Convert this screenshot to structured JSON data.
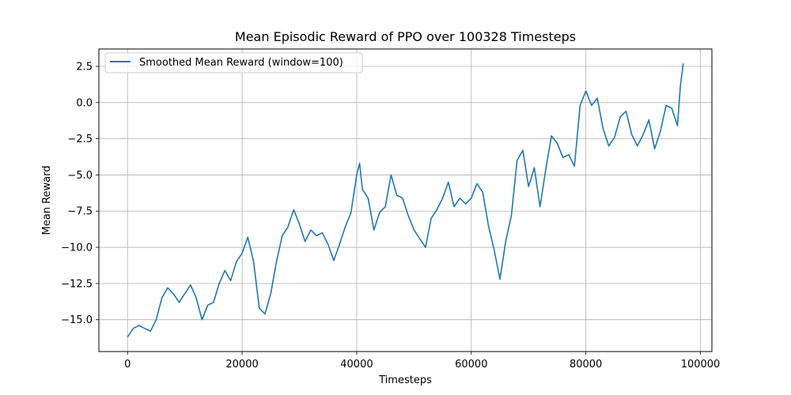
{
  "chart_data": {
    "type": "line",
    "title": "Mean Episodic Reward of PPO over 100328 Timesteps",
    "xlabel": "Timesteps",
    "ylabel": "Mean Reward",
    "xlim": [
      -5000,
      102000
    ],
    "ylim": [
      -17.2,
      3.7
    ],
    "xticks": [
      0,
      20000,
      40000,
      60000,
      80000,
      100000
    ],
    "yticks": [
      -15.0,
      -12.5,
      -10.0,
      -7.5,
      -5.0,
      -2.5,
      0.0,
      2.5
    ],
    "xtick_labels": [
      "0",
      "20000",
      "40000",
      "60000",
      "80000",
      "100000"
    ],
    "ytick_labels": [
      "−15.0",
      "−12.5",
      "−10.0",
      "−7.5",
      "−5.0",
      "−2.5",
      "0.0",
      "2.5"
    ],
    "grid": true,
    "legend_position": "top-left",
    "series": [
      {
        "name": "Smoothed Mean Reward (window=100)",
        "color": "#1f77b4",
        "x": [
          0,
          1000,
          2000,
          3000,
          4000,
          5000,
          6000,
          7000,
          8000,
          9000,
          10000,
          11000,
          12000,
          13000,
          14000,
          15000,
          16000,
          17000,
          18000,
          19000,
          20000,
          21000,
          22000,
          23000,
          24000,
          25000,
          26000,
          27000,
          28000,
          29000,
          30000,
          31000,
          32000,
          33000,
          34000,
          35000,
          36000,
          37000,
          38000,
          39000,
          40000,
          40500,
          41000,
          42000,
          43000,
          44000,
          45000,
          46000,
          47000,
          48000,
          49000,
          50000,
          51000,
          52000,
          53000,
          54000,
          55000,
          56000,
          57000,
          58000,
          59000,
          60000,
          61000,
          62000,
          63000,
          64000,
          65000,
          66000,
          67000,
          68000,
          69000,
          70000,
          71000,
          72000,
          73000,
          74000,
          75000,
          76000,
          77000,
          78000,
          79000,
          80000,
          81000,
          82000,
          83000,
          84000,
          85000,
          86000,
          87000,
          88000,
          89000,
          90000,
          91000,
          92000,
          93000,
          94000,
          95000,
          96000,
          96500,
          97000
        ],
        "y": [
          -16.2,
          -15.6,
          -15.4,
          -15.6,
          -15.8,
          -15.0,
          -13.5,
          -12.8,
          -13.2,
          -13.8,
          -13.2,
          -12.6,
          -13.5,
          -15.0,
          -14.0,
          -13.8,
          -12.5,
          -11.6,
          -12.3,
          -11.0,
          -10.4,
          -9.3,
          -11.0,
          -14.2,
          -14.6,
          -13.2,
          -11.0,
          -9.2,
          -8.6,
          -7.4,
          -8.4,
          -9.6,
          -8.8,
          -9.2,
          -9.0,
          -9.8,
          -10.9,
          -9.8,
          -8.6,
          -7.6,
          -5.0,
          -4.2,
          -6.0,
          -6.6,
          -8.8,
          -7.6,
          -7.2,
          -5.0,
          -6.4,
          -6.6,
          -7.8,
          -8.8,
          -9.4,
          -10.0,
          -8.0,
          -7.4,
          -6.6,
          -5.5,
          -7.2,
          -6.6,
          -7.0,
          -6.6,
          -5.6,
          -6.2,
          -8.5,
          -10.2,
          -12.2,
          -9.6,
          -7.8,
          -4.0,
          -3.3,
          -5.8,
          -4.5,
          -7.2,
          -4.6,
          -2.3,
          -2.8,
          -3.8,
          -3.6,
          -4.4,
          -0.2,
          0.8,
          -0.2,
          0.3,
          -1.8,
          -3.0,
          -2.4,
          -1.0,
          -0.6,
          -2.2,
          -3.0,
          -2.2,
          -1.2,
          -3.2,
          -2.0,
          -0.2,
          -0.4,
          -1.6,
          1.2,
          2.7
        ]
      }
    ]
  }
}
